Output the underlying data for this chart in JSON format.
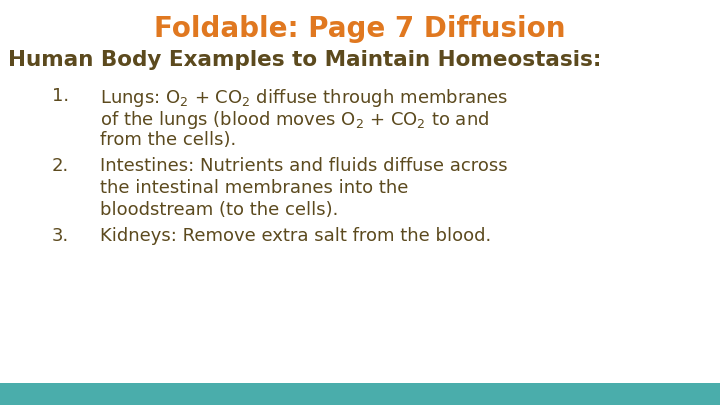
{
  "title": "Foldable: Page 7 Diffusion",
  "title_color": "#E07820",
  "title_fontsize": 20,
  "subtitle": "Human Body Examples to Maintain Homeostasis:",
  "subtitle_color": "#5C4A1E",
  "subtitle_fontsize": 15.5,
  "body_color": "#5C4A1E",
  "body_fontsize": 13,
  "background_color": "#FFFFFF",
  "bottom_bar_color": "#4AADAB",
  "item1_num": "1.",
  "item1_line1": "Lungs: O$_2$ + CO$_2$ diffuse through membranes",
  "item1_line2": "of the lungs (blood moves O$_2$ + CO$_2$ to and",
  "item1_line3": "from the cells).",
  "item2_num": "2.",
  "item2_line1": "Intestines: Nutrients and fluids diffuse across",
  "item2_line2": "the intestinal membranes into the",
  "item2_line3": "bloodstream (to the cells).",
  "item3_num": "3.",
  "item3_line1": "Kidneys: Remove extra salt from the blood."
}
